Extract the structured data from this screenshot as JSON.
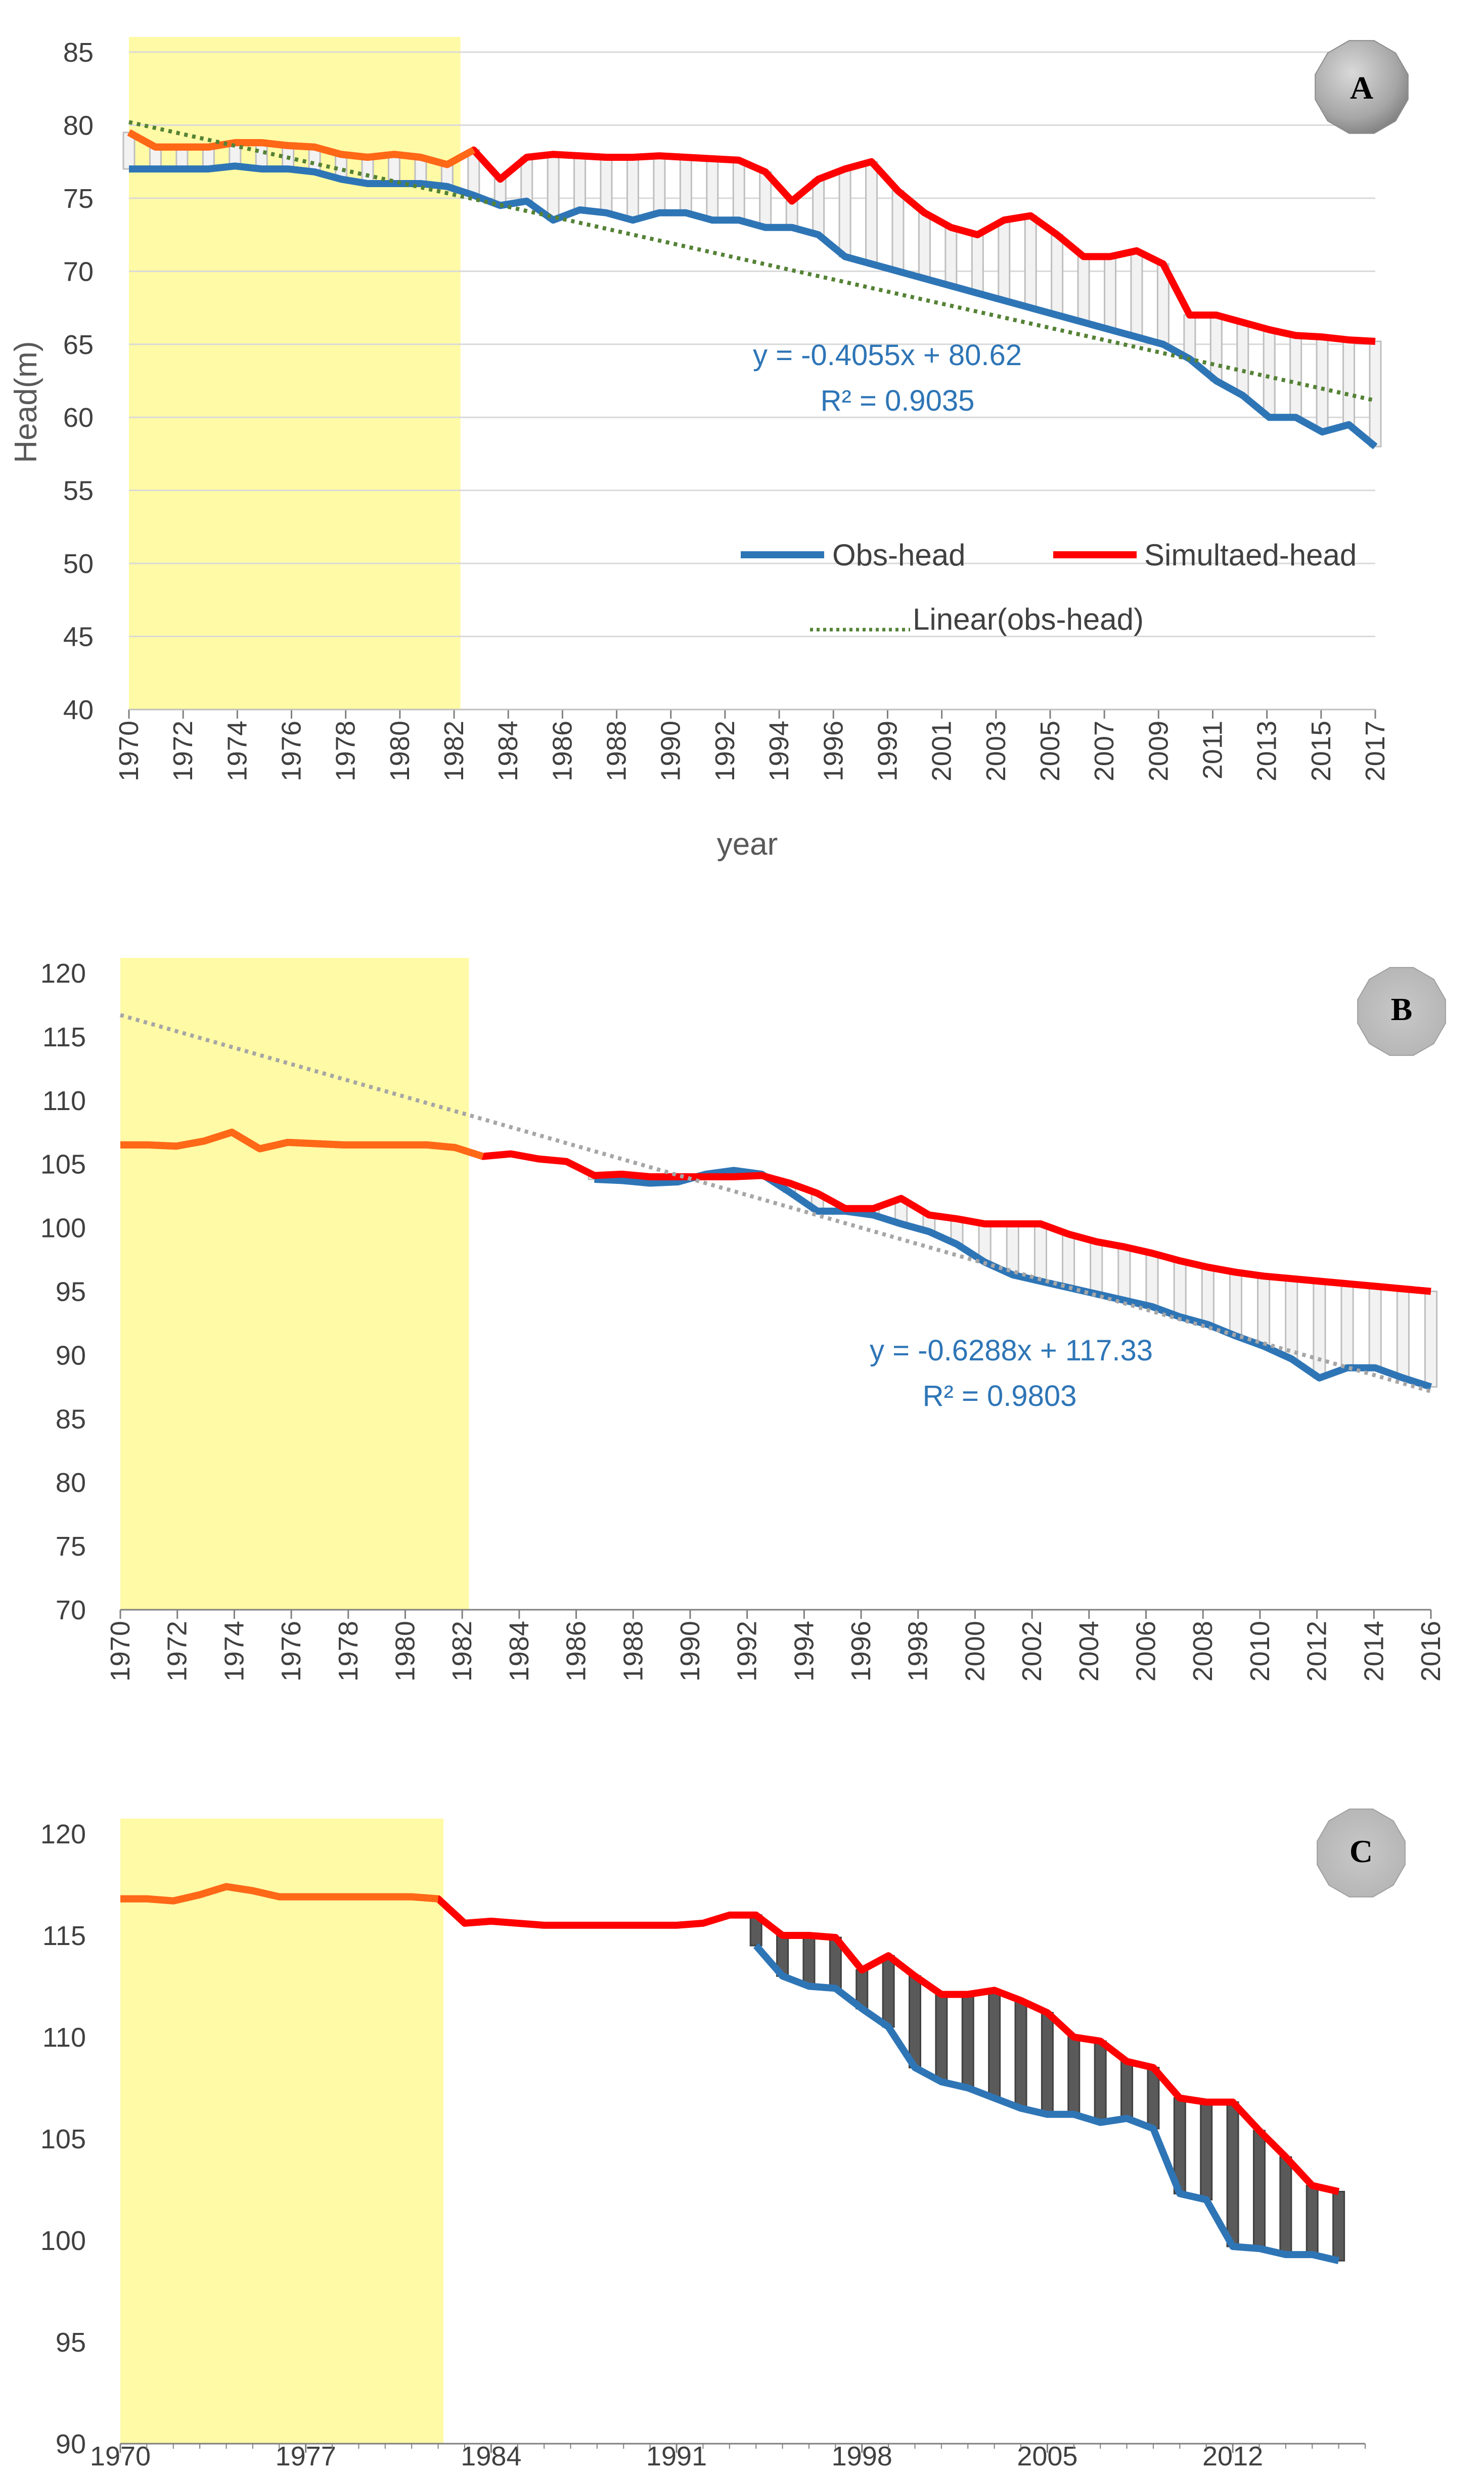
{
  "chart_data": [
    {
      "type": "line",
      "panel_label": "A",
      "title": "",
      "xlabel": "year",
      "ylabel": "Head(m)",
      "ylim": [
        40,
        85
      ],
      "yticks": [
        40,
        45,
        50,
        55,
        60,
        65,
        70,
        75,
        80,
        85
      ],
      "xlim": [
        1970,
        2017
      ],
      "xtick_labels": [
        "1970",
        "1972",
        "1974",
        "1976",
        "1978",
        "1980",
        "1982",
        "1984",
        "1986",
        "1988",
        "1990",
        "1992",
        "1994",
        "1996",
        "1999",
        "2001",
        "2003",
        "2005",
        "2007",
        "2009",
        "2011",
        "2013",
        "2015",
        "2017"
      ],
      "calibration_period": [
        1970,
        1982.5
      ],
      "series": [
        {
          "name": "Obs-head",
          "color": "#2e75b6",
          "x": [
            1970,
            1971,
            1972,
            1973,
            1974,
            1975,
            1976,
            1977,
            1978,
            1979,
            1980,
            1981,
            1982,
            1983,
            1984,
            1985,
            1986,
            1987,
            1988,
            1989,
            1990,
            1991,
            1992,
            1993,
            1994,
            1995,
            1996,
            1997,
            1998,
            1999,
            2000,
            2001,
            2002,
            2003,
            2004,
            2005,
            2006,
            2007,
            2008,
            2009,
            2010,
            2011,
            2012,
            2013,
            2014,
            2015,
            2016,
            2017
          ],
          "values": [
            77,
            77,
            77,
            77,
            77.2,
            77,
            77,
            76.8,
            76.3,
            76,
            76,
            76,
            75.8,
            75.2,
            74.5,
            74.8,
            73.5,
            74.2,
            74,
            73.5,
            74,
            74,
            73.5,
            73.5,
            73,
            73,
            72.5,
            71,
            70.5,
            70,
            69.5,
            69,
            68.5,
            68,
            67.5,
            67,
            66.5,
            66,
            65.5,
            65,
            64,
            62.5,
            61.5,
            60,
            60,
            59,
            59.5,
            58
          ]
        },
        {
          "name": "Simultaed-head",
          "color": "#ff0000",
          "x": [
            1970,
            1971,
            1972,
            1973,
            1974,
            1975,
            1976,
            1977,
            1978,
            1979,
            1980,
            1981,
            1982,
            1983,
            1984,
            1985,
            1986,
            1987,
            1988,
            1989,
            1990,
            1991,
            1992,
            1993,
            1994,
            1995,
            1996,
            1997,
            1998,
            1999,
            2000,
            2001,
            2002,
            2003,
            2004,
            2005,
            2006,
            2007,
            2008,
            2009,
            2010,
            2011,
            2012,
            2013,
            2014,
            2015,
            2016,
            2017
          ],
          "values": [
            79.5,
            78.5,
            78.5,
            78.5,
            78.8,
            78.8,
            78.6,
            78.5,
            78,
            77.8,
            78,
            77.8,
            77.3,
            78.3,
            76.3,
            77.8,
            78,
            77.9,
            77.8,
            77.8,
            77.9,
            77.8,
            77.7,
            77.6,
            76.8,
            74.8,
            76.3,
            77,
            77.5,
            75.5,
            74,
            73,
            72.5,
            73.5,
            73.8,
            72.5,
            71,
            71,
            71.4,
            70.5,
            67,
            67,
            66.5,
            66,
            65.6,
            65.5,
            65.3,
            65.2
          ]
        },
        {
          "name": "Linear(obs-head)",
          "color": "#548235",
          "dashed": true,
          "x": [
            1970,
            2017
          ],
          "values": [
            80.21,
            61.15
          ]
        }
      ],
      "legend": [
        "Obs-head",
        "Simultaed-head",
        "Linear(obs-head)"
      ],
      "annotation_line1": "y = -0.4055x + 80.62",
      "annotation_line2": "R² = 0.9035"
    },
    {
      "type": "line",
      "panel_label": "B",
      "title": "",
      "xlabel": "",
      "ylabel": "",
      "ylim": [
        70,
        120
      ],
      "yticks": [
        70,
        75,
        80,
        85,
        90,
        95,
        100,
        105,
        110,
        115,
        120
      ],
      "xlim": [
        1970,
        2017
      ],
      "xtick_labels": [
        "1970",
        "1972",
        "1974",
        "1976",
        "1978",
        "1980",
        "1982",
        "1984",
        "1986",
        "1988",
        "1990",
        "1992",
        "1994",
        "1996",
        "1998",
        "2000",
        "2002",
        "2004",
        "2006",
        "2008",
        "2010",
        "2012",
        "2014",
        "2016"
      ],
      "calibration_period": [
        1970,
        1982.5
      ],
      "series": [
        {
          "name": "Obs-head",
          "color": "#2e75b6",
          "x": [
            1987,
            1988,
            1989,
            1990,
            1991,
            1992,
            1993,
            1994,
            1995,
            1996,
            1997,
            1998,
            1999,
            2000,
            2001,
            2002,
            2003,
            2004,
            2005,
            2006,
            2007,
            2008,
            2009,
            2010,
            2011,
            2012,
            2013,
            2014,
            2015,
            2016,
            2017
          ],
          "values": [
            103.8,
            103.7,
            103.5,
            103.6,
            104.2,
            104.5,
            104.2,
            102.8,
            101.3,
            101.3,
            101,
            100.3,
            99.7,
            98.7,
            97.3,
            96.3,
            95.8,
            95.3,
            94.8,
            94.3,
            93.8,
            93,
            92.4,
            91.5,
            90.7,
            89.7,
            88.2,
            89,
            89,
            88.2,
            87.5
          ]
        },
        {
          "name": "Simultaed-head",
          "color": "#ff0000",
          "x": [
            1970,
            1971,
            1972,
            1973,
            1974,
            1975,
            1976,
            1977,
            1978,
            1979,
            1980,
            1981,
            1982,
            1983,
            1984,
            1985,
            1986,
            1987,
            1988,
            1989,
            1990,
            1991,
            1992,
            1993,
            1994,
            1995,
            1996,
            1997,
            1998,
            1999,
            2000,
            2001,
            2002,
            2003,
            2004,
            2005,
            2006,
            2007,
            2008,
            2009,
            2010,
            2011,
            2012,
            2013,
            2014,
            2015,
            2016,
            2017
          ],
          "values": [
            106.5,
            106.5,
            106.4,
            106.8,
            107.5,
            106.2,
            106.7,
            106.6,
            106.5,
            106.5,
            106.5,
            106.5,
            106.3,
            105.6,
            105.8,
            105.4,
            105.2,
            104.1,
            104.2,
            104,
            104,
            104,
            104,
            104.1,
            103.5,
            102.7,
            101.5,
            101.5,
            102.3,
            101,
            100.7,
            100.3,
            100.3,
            100.3,
            99.5,
            98.9,
            98.5,
            98,
            97.4,
            96.9,
            96.5,
            96.2,
            96,
            95.8,
            95.6,
            95.4,
            95.2,
            95
          ]
        },
        {
          "name": "Linear(obs-head)",
          "color": "#a6a6a6",
          "dashed": true,
          "x": [
            1970,
            2017
          ],
          "values": [
            116.7,
            87.15
          ]
        }
      ],
      "annotation_line1": "y = -0.6288x + 117.33",
      "annotation_line2": "R² = 0.9803"
    },
    {
      "type": "line",
      "panel_label": "C",
      "title": "",
      "xlabel": "",
      "ylabel": "",
      "ylim": [
        90,
        120
      ],
      "yticks": [
        90,
        95,
        100,
        105,
        110,
        115,
        120
      ],
      "xlim": [
        1970,
        2017
      ],
      "xtick_labels": [
        "1970",
        "1977",
        "1984",
        "1991",
        "1998",
        "2005",
        "2012"
      ],
      "xtick_values": [
        1970,
        1977,
        1984,
        1991,
        1998,
        2005,
        2012
      ],
      "calibration_period": [
        1970,
        1982.2
      ],
      "series": [
        {
          "name": "Obs-head",
          "color": "#2e75b6",
          "x": [
            1994,
            1995,
            1996,
            1997,
            1998,
            1999,
            2000,
            2001,
            2002,
            2003,
            2004,
            2005,
            2006,
            2007,
            2008,
            2009,
            2010,
            2011,
            2012,
            2013,
            2014,
            2015,
            2016
          ],
          "values": [
            114.5,
            113,
            112.5,
            112.4,
            111.4,
            110.5,
            108.5,
            107.8,
            107.5,
            107,
            106.5,
            106.2,
            106.2,
            105.8,
            106,
            105.5,
            102.3,
            102,
            99.7,
            99.6,
            99.3,
            99.3,
            99
          ]
        },
        {
          "name": "Simultaed-head",
          "color": "#ff0000",
          "x": [
            1970,
            1971,
            1972,
            1973,
            1974,
            1975,
            1976,
            1977,
            1978,
            1979,
            1980,
            1981,
            1982,
            1983,
            1984,
            1985,
            1986,
            1987,
            1988,
            1989,
            1990,
            1991,
            1992,
            1993,
            1994,
            1995,
            1996,
            1997,
            1998,
            1999,
            2000,
            2001,
            2002,
            2003,
            2004,
            2005,
            2006,
            2007,
            2008,
            2009,
            2010,
            2011,
            2012,
            2013,
            2014,
            2015,
            2016
          ],
          "values": [
            116.8,
            116.8,
            116.7,
            117,
            117.4,
            117.2,
            116.9,
            116.9,
            116.9,
            116.9,
            116.9,
            116.9,
            116.8,
            115.6,
            115.7,
            115.6,
            115.5,
            115.5,
            115.5,
            115.5,
            115.5,
            115.5,
            115.6,
            116,
            116,
            115,
            115,
            114.9,
            113.3,
            114,
            113,
            112.1,
            112.1,
            112.3,
            111.8,
            111.2,
            110,
            109.8,
            108.8,
            108.5,
            107,
            106.8,
            106.8,
            105.4,
            104.1,
            102.7,
            102.4
          ]
        }
      ]
    }
  ]
}
